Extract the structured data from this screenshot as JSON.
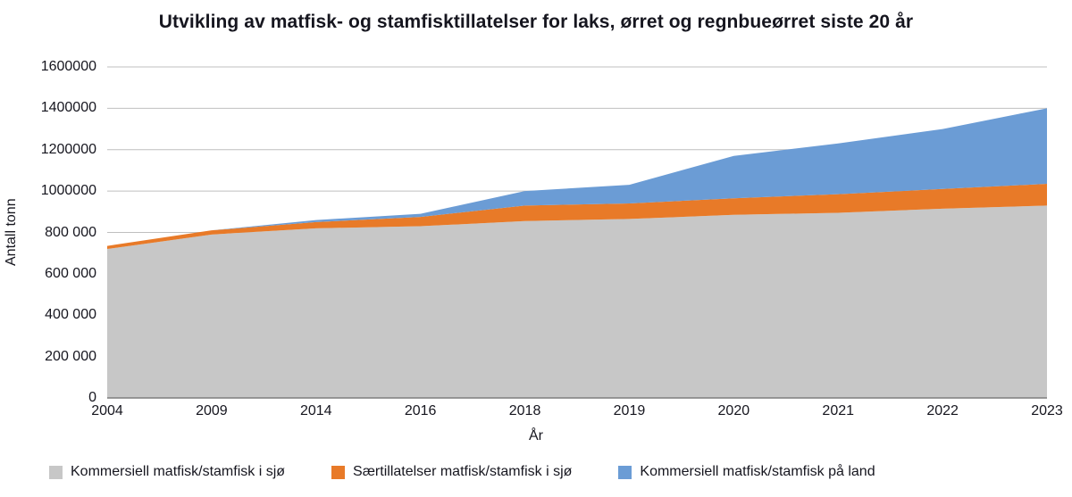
{
  "chart_data": {
    "type": "area",
    "stacked": true,
    "title": "Utvikling av matfisk- og stamfisktillatelser for laks, ørret og regnbueørret siste 20 år",
    "xlabel": "År",
    "ylabel": "Antall tonn",
    "grid": "horizontal",
    "legend_position": "bottom",
    "categories": [
      "2004",
      "2009",
      "2014",
      "2016",
      "2018",
      "2019",
      "2020",
      "2021",
      "2022",
      "2023"
    ],
    "y_axis": {
      "min": 0,
      "max": 1600000,
      "tick_step": 200000,
      "tick_labels": [
        "0",
        "200 000",
        "400 000",
        "600 000",
        "800 000",
        "1000000",
        "1200000",
        "1400000",
        "1600000"
      ]
    },
    "series": [
      {
        "name": "Kommersiell matfisk/stamfisk i sjø",
        "color": "#c7c7c7",
        "values": [
          720000,
          790000,
          820000,
          830000,
          855000,
          865000,
          885000,
          895000,
          915000,
          930000
        ]
      },
      {
        "name": "Særtillatelser matfisk/stamfisk i sjø",
        "color": "#e87a28",
        "values": [
          15000,
          20000,
          30000,
          45000,
          75000,
          75000,
          80000,
          90000,
          95000,
          105000
        ]
      },
      {
        "name": "Kommersiell matfisk/stamfisk på land",
        "color": "#6b9cd5",
        "values": [
          0,
          0,
          10000,
          15000,
          70000,
          90000,
          205000,
          245000,
          290000,
          365000
        ]
      }
    ],
    "colors": {
      "gridline": "#bfbfbf",
      "axis": "#7f7f7f",
      "text": "#16161f",
      "background": "#ffffff"
    }
  }
}
